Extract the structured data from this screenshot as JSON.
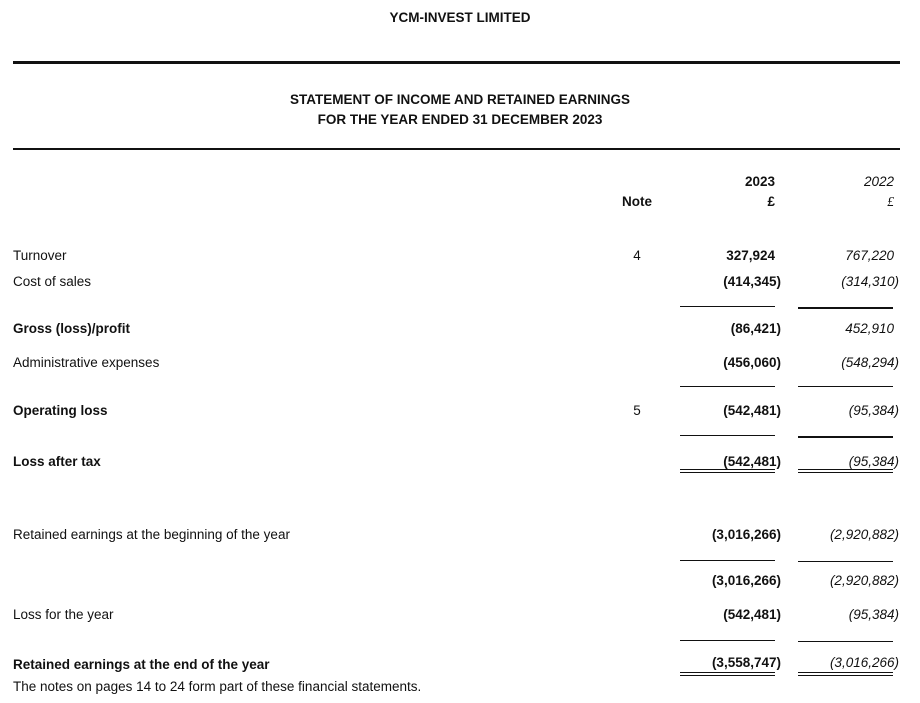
{
  "company": "YCM-INVEST LIMITED",
  "statement": {
    "title": "STATEMENT OF INCOME AND RETAINED EARNINGS",
    "period": "FOR THE YEAR ENDED 31 DECEMBER 2023"
  },
  "columns": {
    "note": "Note",
    "current_year": "2023",
    "current_currency": "£",
    "prior_year": "2022",
    "prior_currency": "£"
  },
  "rows": [
    {
      "label": "Turnover",
      "note": "4",
      "current": "327,924",
      "prior": "767,220"
    },
    {
      "label": "Cost of sales",
      "note": "",
      "current": "(414,345)",
      "prior": "(314,310)"
    },
    {
      "label": "Gross (loss)/profit",
      "note": "",
      "current": "(86,421)",
      "prior": "452,910"
    },
    {
      "label": "Administrative expenses",
      "note": "",
      "current": "(456,060)",
      "prior": "(548,294)"
    },
    {
      "label": "Operating loss",
      "note": "5",
      "current": "(542,481)",
      "prior": "(95,384)"
    },
    {
      "label": "Loss after tax",
      "note": "",
      "current": "(542,481)",
      "prior": "(95,384)"
    },
    {
      "label": "Retained earnings at the beginning of the year",
      "note": "",
      "current": "(3,016,266)",
      "prior": "(2,920,882)"
    },
    {
      "label": "",
      "note": "",
      "current": "(3,016,266)",
      "prior": "(2,920,882)"
    },
    {
      "label": "Loss for the year",
      "note": "",
      "current": "(542,481)",
      "prior": "(95,384)"
    },
    {
      "label": "Retained earnings at the end of the year",
      "note": "",
      "current": "(3,558,747)",
      "prior": "(3,016,266)"
    }
  ],
  "footer": "The notes on pages 14 to 24 form part of these financial statements."
}
